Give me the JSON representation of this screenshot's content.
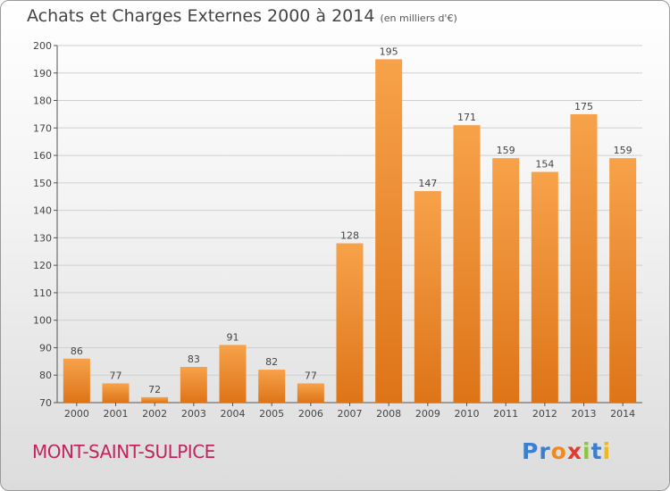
{
  "title": "Achats et Charges Externes 2000 à 2014",
  "subtitle": "(en milliers d'€)",
  "commune": "MONT-SAINT-SULPICE",
  "logo": {
    "letters": [
      {
        "char": "P",
        "color": "#3b7fd1"
      },
      {
        "char": "r",
        "color": "#3b7fd1"
      },
      {
        "char": "o",
        "color": "#f08a1c"
      },
      {
        "char": "x",
        "color": "#e23b2e"
      },
      {
        "char": "i",
        "color": "#8cc63f"
      },
      {
        "char": "t",
        "color": "#3b7fd1"
      },
      {
        "char": "i",
        "color": "#f0b81c"
      }
    ]
  },
  "chart_data": {
    "type": "bar",
    "categories": [
      "2000",
      "2001",
      "2002",
      "2003",
      "2004",
      "2005",
      "2006",
      "2007",
      "2008",
      "2009",
      "2010",
      "2011",
      "2012",
      "2013",
      "2014"
    ],
    "values": [
      86,
      77,
      72,
      83,
      91,
      82,
      77,
      128,
      195,
      147,
      171,
      159,
      154,
      175,
      159
    ],
    "ylim": [
      70,
      200
    ],
    "yticks": [
      70,
      80,
      90,
      100,
      110,
      120,
      130,
      140,
      150,
      160,
      170,
      180,
      190,
      200
    ],
    "grid": true,
    "bar_color": "#f0922e"
  }
}
